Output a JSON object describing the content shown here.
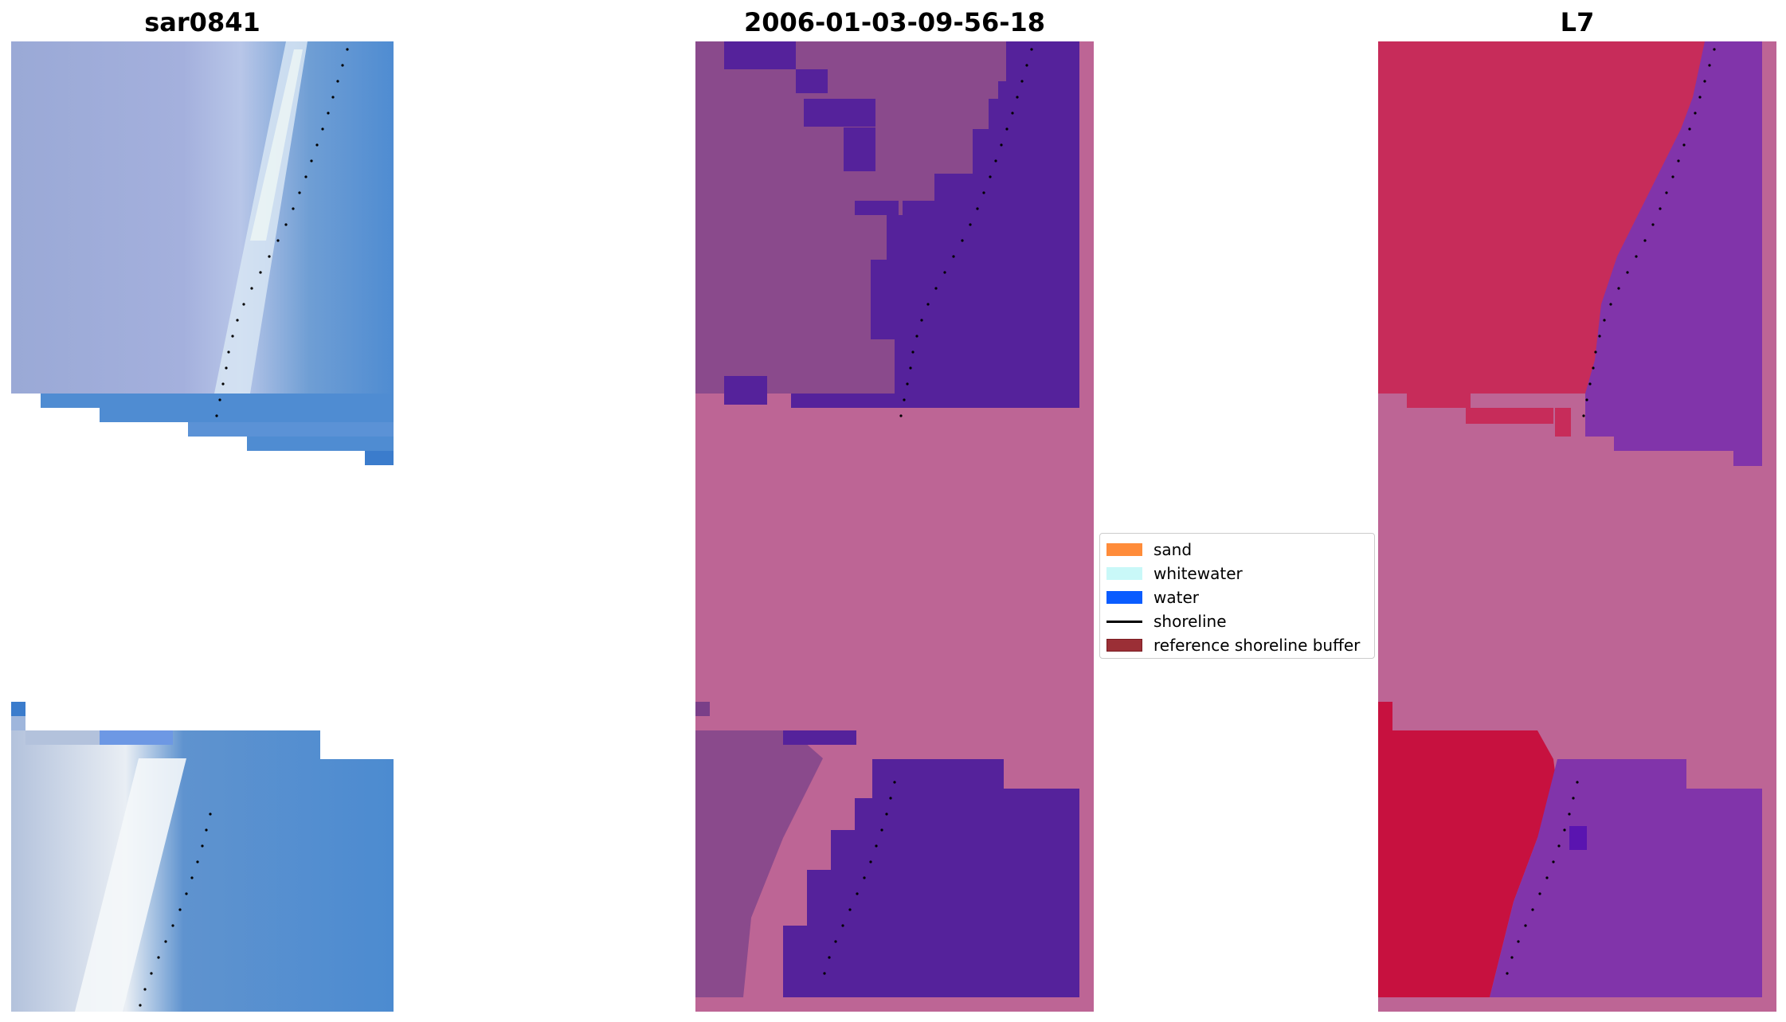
{
  "panels": [
    {
      "title": "sar0841"
    },
    {
      "title": "2006-01-03-09-56-18"
    },
    {
      "title": "L7"
    }
  ],
  "legend": {
    "items": [
      {
        "label": "sand",
        "color": "#ff8c3a",
        "kind": "patch"
      },
      {
        "label": "whitewater",
        "color": "#c9f8f8",
        "kind": "patch"
      },
      {
        "label": "water",
        "color": "#0a5cff",
        "kind": "patch"
      },
      {
        "label": "shoreline",
        "color": "#000000",
        "kind": "line"
      },
      {
        "label": "reference shoreline buffer",
        "color": "#9b2f36",
        "kind": "patch"
      }
    ]
  },
  "colors": {
    "rgb_land": "#8fa1d3",
    "rgb_water": "#4f8cd2",
    "rgb_whitewater": "#e8f1f6",
    "class_land": "#8a4a8c",
    "class_water": "#55229b",
    "class_nodata": "#bd6595",
    "index_land": "#c72c5a",
    "index_water": "#7e34a9",
    "index_nodata": "#bd6595"
  }
}
